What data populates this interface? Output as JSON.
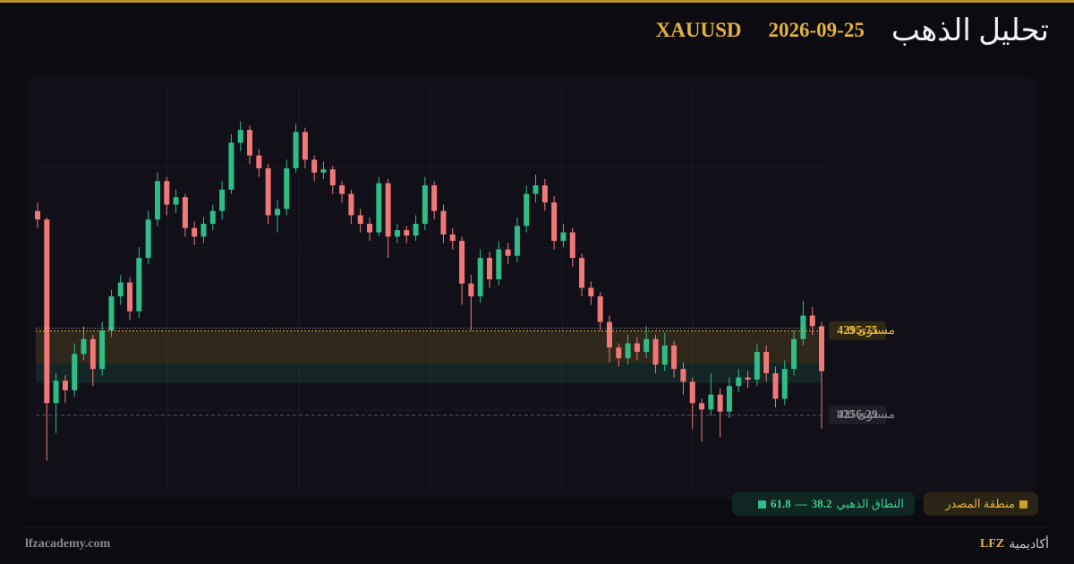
{
  "header": {
    "title": "تحليل الذهب",
    "date": "2026-09-25",
    "symbol": "XAUUSD"
  },
  "chart_data": {
    "type": "candlestick",
    "ylim": [
      4221,
      4411
    ],
    "up_color": "#2ebd85",
    "down_color": "#f07878",
    "candles": [
      [
        4352,
        4356,
        4344,
        4348
      ],
      [
        4348,
        4349,
        4235,
        4262
      ],
      [
        4262,
        4276,
        4248,
        4272.5
      ],
      [
        4272.5,
        4275,
        4262,
        4268
      ],
      [
        4268,
        4290,
        4265,
        4285
      ],
      [
        4285,
        4298,
        4282,
        4292
      ],
      [
        4292,
        4294,
        4270,
        4278
      ],
      [
        4278,
        4300,
        4275,
        4296
      ],
      [
        4296,
        4315,
        4293,
        4312
      ],
      [
        4312,
        4322,
        4308,
        4318.5
      ],
      [
        4318.5,
        4321,
        4301,
        4305
      ],
      [
        4305,
        4335,
        4302,
        4330
      ],
      [
        4330,
        4352,
        4327,
        4348
      ],
      [
        4348,
        4370,
        4345,
        4366
      ],
      [
        4366,
        4368,
        4350,
        4355
      ],
      [
        4355,
        4362,
        4351,
        4358.5
      ],
      [
        4358.5,
        4360,
        4340,
        4344
      ],
      [
        4344,
        4347,
        4336,
        4340
      ],
      [
        4340,
        4349,
        4337,
        4346
      ],
      [
        4346,
        4355,
        4343,
        4352
      ],
      [
        4352,
        4366,
        4348,
        4362
      ],
      [
        4362,
        4388,
        4360,
        4384
      ],
      [
        4384,
        4394,
        4380,
        4390
      ],
      [
        4390,
        4392,
        4374,
        4378
      ],
      [
        4378,
        4381,
        4368,
        4372
      ],
      [
        4372,
        4374,
        4346,
        4350
      ],
      [
        4350,
        4357,
        4342,
        4353
      ],
      [
        4353,
        4376,
        4350,
        4372
      ],
      [
        4372,
        4393,
        4370,
        4389
      ],
      [
        4389,
        4391,
        4372,
        4376
      ],
      [
        4376,
        4378,
        4366,
        4370
      ],
      [
        4370,
        4375,
        4367,
        4371.5
      ],
      [
        4371.5,
        4373,
        4360,
        4364
      ],
      [
        4364,
        4366,
        4356,
        4360
      ],
      [
        4360,
        4362,
        4346,
        4350
      ],
      [
        4350,
        4353,
        4342,
        4346
      ],
      [
        4346,
        4349,
        4338,
        4342
      ],
      [
        4342,
        4368,
        4340,
        4365
      ],
      [
        4365,
        4367,
        4330,
        4340
      ],
      [
        4340,
        4346,
        4337,
        4343
      ],
      [
        4343,
        4345,
        4337,
        4340.5
      ],
      [
        4340.5,
        4350,
        4338,
        4346
      ],
      [
        4346,
        4368,
        4343,
        4364
      ],
      [
        4364,
        4366,
        4348,
        4352
      ],
      [
        4352,
        4355,
        4337,
        4341
      ],
      [
        4341,
        4344,
        4334,
        4338
      ],
      [
        4338,
        4340,
        4308,
        4318
      ],
      [
        4318,
        4322,
        4296,
        4312
      ],
      [
        4312,
        4334,
        4309,
        4330
      ],
      [
        4330,
        4333,
        4316,
        4320
      ],
      [
        4320,
        4338,
        4317,
        4334
      ],
      [
        4334,
        4337,
        4327,
        4331
      ],
      [
        4331,
        4349,
        4328,
        4345
      ],
      [
        4345,
        4364,
        4342,
        4360
      ],
      [
        4360,
        4369,
        4356,
        4364
      ],
      [
        4364,
        4367,
        4352,
        4356
      ],
      [
        4356,
        4359,
        4334,
        4338
      ],
      [
        4338,
        4346,
        4335,
        4342
      ],
      [
        4342,
        4344,
        4326,
        4330
      ],
      [
        4330,
        4332,
        4312,
        4316
      ],
      [
        4316,
        4319,
        4308,
        4312
      ],
      [
        4312,
        4314,
        4296,
        4300
      ],
      [
        4300,
        4303,
        4281,
        4288
      ],
      [
        4288,
        4290,
        4279,
        4283
      ],
      [
        4283,
        4294,
        4280,
        4290
      ],
      [
        4290,
        4293,
        4282,
        4286
      ],
      [
        4286,
        4298,
        4283,
        4292
      ],
      [
        4292,
        4294,
        4276,
        4280
      ],
      [
        4280,
        4295,
        4277,
        4289
      ],
      [
        4289,
        4291,
        4274,
        4278
      ],
      [
        4278,
        4281,
        4266,
        4272
      ],
      [
        4272,
        4274,
        4250,
        4262
      ],
      [
        4262,
        4264,
        4244,
        4259
      ],
      [
        4259,
        4276,
        4256,
        4266
      ],
      [
        4266,
        4269,
        4246,
        4258
      ],
      [
        4258,
        4274,
        4255,
        4270
      ],
      [
        4270,
        4278,
        4267,
        4274
      ],
      [
        4274,
        4277,
        4269,
        4273
      ],
      [
        4273,
        4290,
        4270,
        4286
      ],
      [
        4286,
        4289,
        4272,
        4276
      ],
      [
        4276,
        4279,
        4260,
        4264
      ],
      [
        4264,
        4282,
        4261,
        4278
      ],
      [
        4278,
        4296,
        4275,
        4292
      ],
      [
        4292,
        4310,
        4289,
        4303
      ],
      [
        4303,
        4307,
        4294,
        4298
      ],
      [
        4298,
        4300,
        4250,
        4277
      ]
    ],
    "levels": [
      {
        "name": "مستوى 0",
        "value": 4295.75
      },
      {
        "name": "مستوى 100",
        "value": 4256.29
      }
    ],
    "source_zone": {
      "label": "منطقة المصدر",
      "color": "#c9a227"
    },
    "golden_zone": {
      "label": "النطاق الذهبي",
      "from": 38.2,
      "separator": "—",
      "to": 61.8,
      "color": "#2ebd85"
    }
  },
  "footer": {
    "site": "lfzacademy.com",
    "brand": "LFZ",
    "brand_text": "أكاديمية"
  }
}
